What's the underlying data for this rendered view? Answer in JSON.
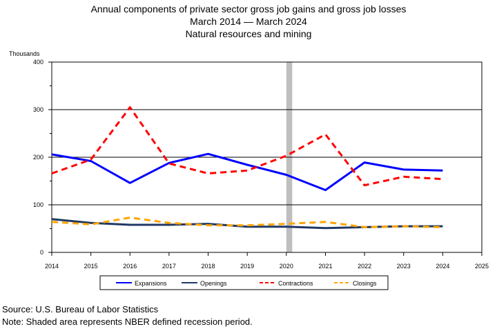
{
  "chart_data": {
    "type": "line",
    "title": "Annual components of private sector gross job gains and gross job losses",
    "subtitle": "March 2014 — March 2024",
    "subtitle2": "Natural resources and mining",
    "ylabel": "Thousands",
    "ylim": [
      0,
      400
    ],
    "yticks": [
      "0",
      "100",
      "200",
      "300",
      "400"
    ],
    "xlim": [
      2014,
      2025
    ],
    "xticks": [
      "2014",
      "2015",
      "2016",
      "2017",
      "2018",
      "2019",
      "2020",
      "2021",
      "2022",
      "2023",
      "2024",
      "2025"
    ],
    "grid": "horizontal",
    "recession_shading": {
      "start": 2020.0,
      "end": 2020.15,
      "color": "#bfbfbf"
    },
    "legend_position": "bottom",
    "series": [
      {
        "name": "Expansions",
        "color": "#0000ff",
        "style": "solid",
        "x": [
          2014,
          2015,
          2016,
          2017,
          2018,
          2019,
          2020,
          2021,
          2022,
          2023,
          2024
        ],
        "y": [
          206,
          192,
          146,
          188,
          207,
          184,
          163,
          131,
          189,
          174,
          172
        ]
      },
      {
        "name": "Openings",
        "color": "#203864",
        "style": "solid",
        "x": [
          2014,
          2015,
          2016,
          2017,
          2018,
          2019,
          2020,
          2021,
          2022,
          2023,
          2024
        ],
        "y": [
          70,
          62,
          58,
          58,
          60,
          54,
          54,
          51,
          53,
          55,
          55
        ]
      },
      {
        "name": "Contractions",
        "color": "#ff0000",
        "style": "dashed",
        "x": [
          2014,
          2015,
          2016,
          2017,
          2018,
          2019,
          2020,
          2021,
          2022,
          2023,
          2024
        ],
        "y": [
          166,
          195,
          305,
          187,
          166,
          172,
          203,
          248,
          141,
          159,
          154
        ]
      },
      {
        "name": "Closings",
        "color": "#ffa500",
        "style": "dashed",
        "x": [
          2014,
          2015,
          2016,
          2017,
          2018,
          2019,
          2020,
          2021,
          2022,
          2023,
          2024
        ],
        "y": [
          64,
          59,
          73,
          62,
          57,
          57,
          60,
          64,
          53,
          55,
          53
        ]
      }
    ]
  },
  "notes": {
    "source": "Source: U.S. Bureau of Labor Statistics",
    "note": "Note: Shaded area represents NBER defined recession period."
  }
}
